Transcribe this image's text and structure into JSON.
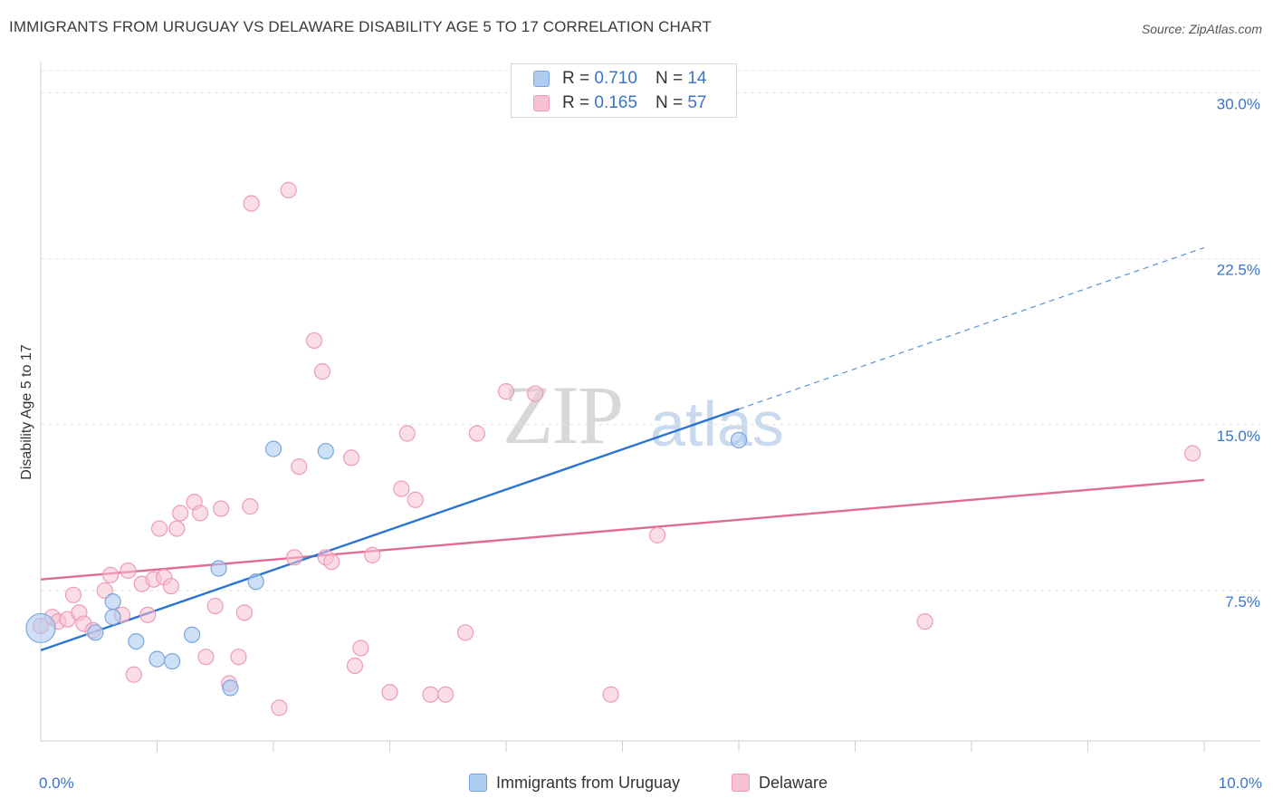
{
  "header": {
    "title": "IMMIGRANTS FROM URUGUAY VS DELAWARE DISABILITY AGE 5 TO 17 CORRELATION CHART",
    "source": "Source: ZipAtlas.com"
  },
  "watermark": {
    "zip": "ZIP",
    "atlas": "atlas"
  },
  "legend": {
    "rows": [
      {
        "r_label": "R =",
        "r_value": "0.710",
        "n_label": "N =",
        "n_value": "14"
      },
      {
        "r_label": "R =",
        "r_value": "0.165",
        "n_label": "N =",
        "n_value": "57"
      }
    ]
  },
  "bottom_legend": {
    "series1": "Immigrants from Uruguay",
    "series2": "Delaware"
  },
  "colors": {
    "series1_fill": "#aecbf0",
    "series1_stroke": "#7aa6df",
    "series1_line": "#2b74d0",
    "series2_fill": "#f7c1d1",
    "series2_stroke": "#ee9bb6",
    "series2_line": "#e06a99",
    "axis_text": "#3a74c7",
    "grid": "#e4e4e4"
  },
  "chart_data": {
    "type": "scatter",
    "title": "IMMIGRANTS FROM URUGUAY VS DELAWARE DISABILITY AGE 5 TO 17 CORRELATION CHART",
    "xlabel": "",
    "ylabel": "Disability Age 5 to 17",
    "xlim": [
      0,
      10
    ],
    "ylim": [
      0.7,
      31
    ],
    "x_tick_labels": [
      "0.0%",
      "10.0%"
    ],
    "y_ticks": [
      7.5,
      15.0,
      22.5,
      30.0
    ],
    "y_tick_labels": [
      "7.5%",
      "15.0%",
      "22.5%",
      "30.0%"
    ],
    "series": [
      {
        "name": "Immigrants from Uruguay",
        "points": [
          [
            0.0,
            5.8
          ],
          [
            0.47,
            5.6
          ],
          [
            0.62,
            6.3
          ],
          [
            0.62,
            7.0
          ],
          [
            0.82,
            5.2
          ],
          [
            1.0,
            4.4
          ],
          [
            1.13,
            4.3
          ],
          [
            1.3,
            5.5
          ],
          [
            1.53,
            8.5
          ],
          [
            1.63,
            3.1
          ],
          [
            1.85,
            7.9
          ],
          [
            2.0,
            13.9
          ],
          [
            2.45,
            13.8
          ],
          [
            6.0,
            14.3
          ]
        ],
        "trend": {
          "x": [
            0.0,
            6.0
          ],
          "y": [
            4.8,
            15.7
          ]
        },
        "trend_ext": {
          "x": [
            6.0,
            10.0
          ],
          "y": [
            15.7,
            23.0
          ]
        }
      },
      {
        "name": "Delaware",
        "points": [
          [
            0.0,
            5.9
          ],
          [
            0.1,
            6.3
          ],
          [
            0.15,
            6.1
          ],
          [
            0.23,
            6.2
          ],
          [
            0.28,
            7.3
          ],
          [
            0.33,
            6.5
          ],
          [
            0.37,
            6.0
          ],
          [
            0.45,
            5.7
          ],
          [
            0.55,
            7.5
          ],
          [
            0.6,
            8.2
          ],
          [
            0.7,
            6.4
          ],
          [
            0.75,
            8.4
          ],
          [
            0.8,
            3.7
          ],
          [
            0.87,
            7.8
          ],
          [
            0.92,
            6.4
          ],
          [
            0.97,
            8.0
          ],
          [
            1.02,
            10.3
          ],
          [
            1.06,
            8.1
          ],
          [
            1.12,
            7.7
          ],
          [
            1.17,
            10.3
          ],
          [
            1.2,
            11.0
          ],
          [
            1.32,
            11.5
          ],
          [
            1.37,
            11.0
          ],
          [
            1.42,
            4.5
          ],
          [
            1.5,
            6.8
          ],
          [
            1.55,
            11.2
          ],
          [
            1.62,
            3.3
          ],
          [
            1.7,
            4.5
          ],
          [
            1.75,
            6.5
          ],
          [
            1.8,
            11.3
          ],
          [
            1.81,
            25.0
          ],
          [
            2.05,
            2.2
          ],
          [
            2.13,
            25.6
          ],
          [
            2.18,
            9.0
          ],
          [
            2.22,
            13.1
          ],
          [
            2.35,
            18.8
          ],
          [
            2.42,
            17.4
          ],
          [
            2.45,
            9.0
          ],
          [
            2.5,
            8.8
          ],
          [
            2.67,
            13.5
          ],
          [
            2.7,
            4.1
          ],
          [
            2.75,
            4.9
          ],
          [
            2.85,
            9.1
          ],
          [
            3.0,
            2.9
          ],
          [
            3.1,
            12.1
          ],
          [
            3.15,
            14.6
          ],
          [
            3.22,
            11.6
          ],
          [
            3.35,
            2.8
          ],
          [
            3.48,
            2.8
          ],
          [
            3.65,
            5.6
          ],
          [
            3.75,
            14.6
          ],
          [
            4.0,
            16.5
          ],
          [
            4.25,
            16.4
          ],
          [
            4.9,
            2.8
          ],
          [
            5.3,
            10.0
          ],
          [
            7.6,
            6.1
          ],
          [
            9.9,
            13.7
          ]
        ],
        "trend": {
          "x": [
            0.0,
            10.0
          ],
          "y": [
            8.0,
            12.5
          ]
        }
      }
    ]
  }
}
